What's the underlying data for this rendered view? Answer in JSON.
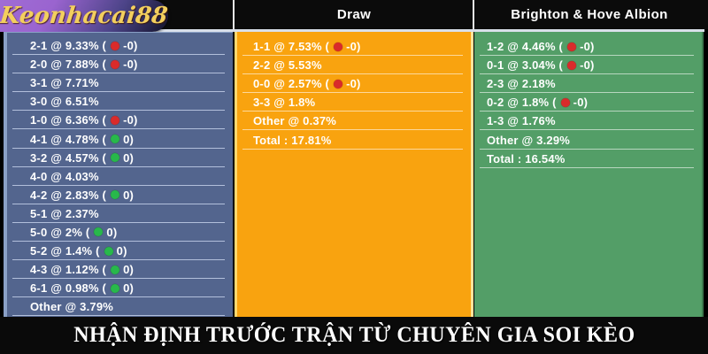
{
  "brand": {
    "logo_text": "Keonhacai88"
  },
  "table": {
    "headers": {
      "draw": "Draw",
      "away": "Brighton & Hove Albion"
    },
    "home_rows": [
      {
        "pre": "2-1 @ 9.33% (",
        "dot": "red",
        "post": "-0)"
      },
      {
        "pre": "2-0 @ 7.88% (",
        "dot": "red",
        "post": "-0)"
      },
      {
        "pre": "3-1 @ 7.71%",
        "dot": "",
        "post": ""
      },
      {
        "pre": "3-0 @ 6.51%",
        "dot": "",
        "post": ""
      },
      {
        "pre": "1-0 @ 6.36% (",
        "dot": "red",
        "post": "-0)"
      },
      {
        "pre": "4-1 @ 4.78% (",
        "dot": "green",
        "post": "0)"
      },
      {
        "pre": "3-2 @ 4.57% (",
        "dot": "green",
        "post": "0)"
      },
      {
        "pre": "4-0 @ 4.03%",
        "dot": "",
        "post": ""
      },
      {
        "pre": "4-2 @ 2.83% (",
        "dot": "green",
        "post": "0)"
      },
      {
        "pre": "5-1 @ 2.37%",
        "dot": "",
        "post": ""
      },
      {
        "pre": "5-0 @ 2% (",
        "dot": "green",
        "post": "0)"
      },
      {
        "pre": "5-2 @ 1.4% (",
        "dot": "green",
        "post": "0)"
      },
      {
        "pre": "4-3 @ 1.12% (",
        "dot": "green",
        "post": "0)"
      },
      {
        "pre": "6-1 @ 0.98% (",
        "dot": "green",
        "post": "0)"
      },
      {
        "pre": "Other @ 3.79%",
        "dot": "",
        "post": ""
      }
    ],
    "draw_rows": [
      {
        "pre": "1-1 @ 7.53% (",
        "dot": "red",
        "post": "-0)"
      },
      {
        "pre": "2-2 @ 5.53%",
        "dot": "",
        "post": ""
      },
      {
        "pre": "0-0 @ 2.57% (",
        "dot": "red",
        "post": "-0)"
      },
      {
        "pre": "3-3 @ 1.8%",
        "dot": "",
        "post": ""
      },
      {
        "pre": "Other @ 0.37%",
        "dot": "",
        "post": ""
      },
      {
        "pre": "Total : 17.81%",
        "dot": "",
        "post": ""
      }
    ],
    "away_rows": [
      {
        "pre": "1-2 @ 4.46% (",
        "dot": "red",
        "post": "-0)"
      },
      {
        "pre": "0-1 @ 3.04% (",
        "dot": "red",
        "post": "-0)"
      },
      {
        "pre": "2-3 @ 2.18%",
        "dot": "",
        "post": ""
      },
      {
        "pre": "0-2 @ 1.8% (",
        "dot": "red",
        "post": "-0)"
      },
      {
        "pre": "1-3 @ 1.76%",
        "dot": "",
        "post": ""
      },
      {
        "pre": "Other @ 3.29%",
        "dot": "",
        "post": ""
      },
      {
        "pre": "Total : 16.54%",
        "dot": "",
        "post": ""
      }
    ]
  },
  "banner": {
    "text": "NHẬN ĐỊNH TRƯỚC TRẬN TỪ CHUYÊN GIA SOI KÈO"
  },
  "colors": {
    "home_column": "#53658e",
    "draw_column": "#f9a30f",
    "away_column": "#539e67",
    "red_dot": "#d92b2b",
    "green_dot": "#28b84b",
    "header_bg": "#0b0b0b",
    "logo_gold": "#f3cf5e"
  }
}
